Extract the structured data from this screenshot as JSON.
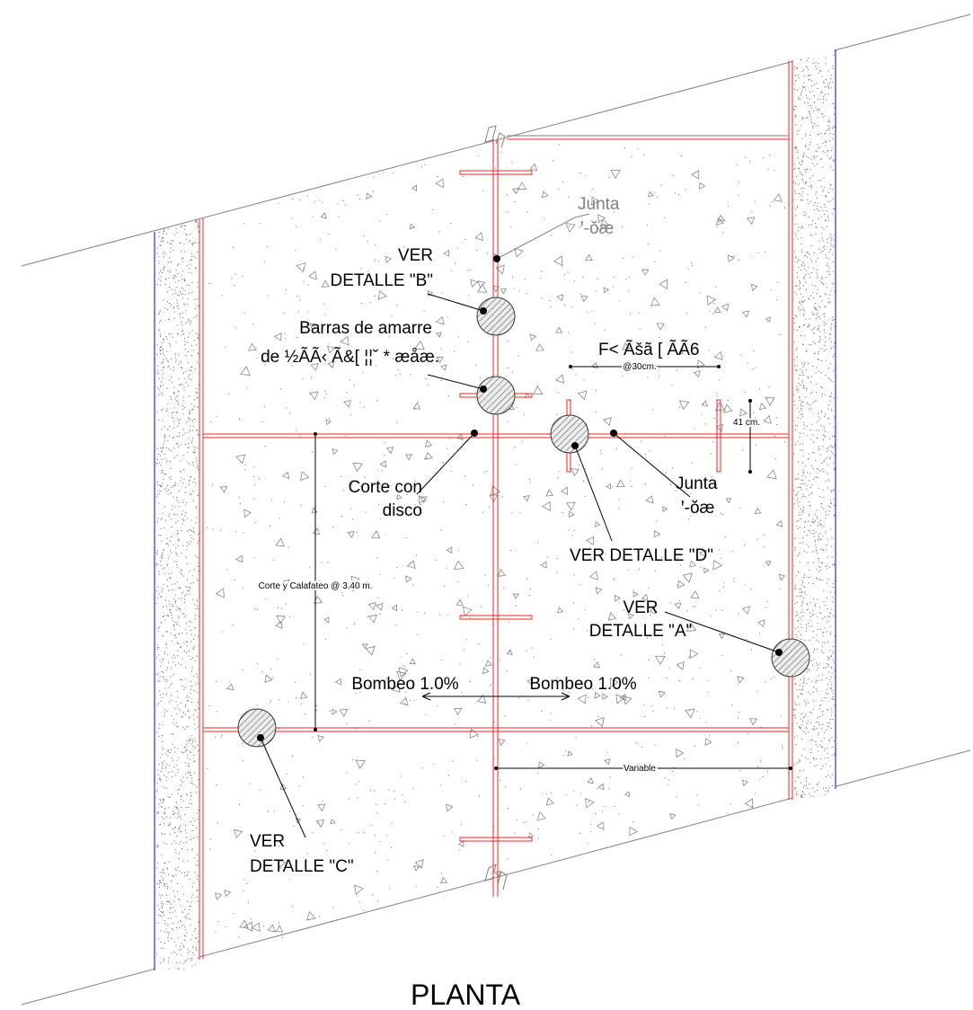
{
  "title": "PLANTA",
  "labels": {
    "junta_top_1": "Junta",
    "junta_top_2": "ꞌ-ŏæ",
    "detalle_b_1": "VER",
    "detalle_b_2": "DETALLE \"B\"",
    "barras_1": "Barras de amarre",
    "barras_2": "de ½ÃÃ‹ Ã&[ ¦¦˘ * æåæ.",
    "dowel_1": "F< Ãšã [ ÃÃ6",
    "dowel_spacing": "@30cm.",
    "dim_41": "41 cm.",
    "corte_disco_1": "Corte con",
    "corte_disco_2": "disco",
    "junta_mid_1": "Junta",
    "junta_mid_2": "ꞌ-ŏæ",
    "detalle_d": "VER DETALLE \"D\"",
    "corte_calafateo": "Corte y Calafateo @ 3.40 m.",
    "detalle_a_1": "VER",
    "detalle_a_2": "DETALLE \"A\"",
    "bombeo_left": "Bombeo 1.0%",
    "bombeo_right": "Bombeo 1.0%",
    "variable": "Variable",
    "detalle_c_1": "VER",
    "detalle_c_2": "DETALLE \"C\""
  },
  "colors": {
    "joint_red": "#ff2020",
    "edge_blue": "#0000ff",
    "outline_gray": "#808080",
    "hatch_fill": "#e6e6e6"
  }
}
